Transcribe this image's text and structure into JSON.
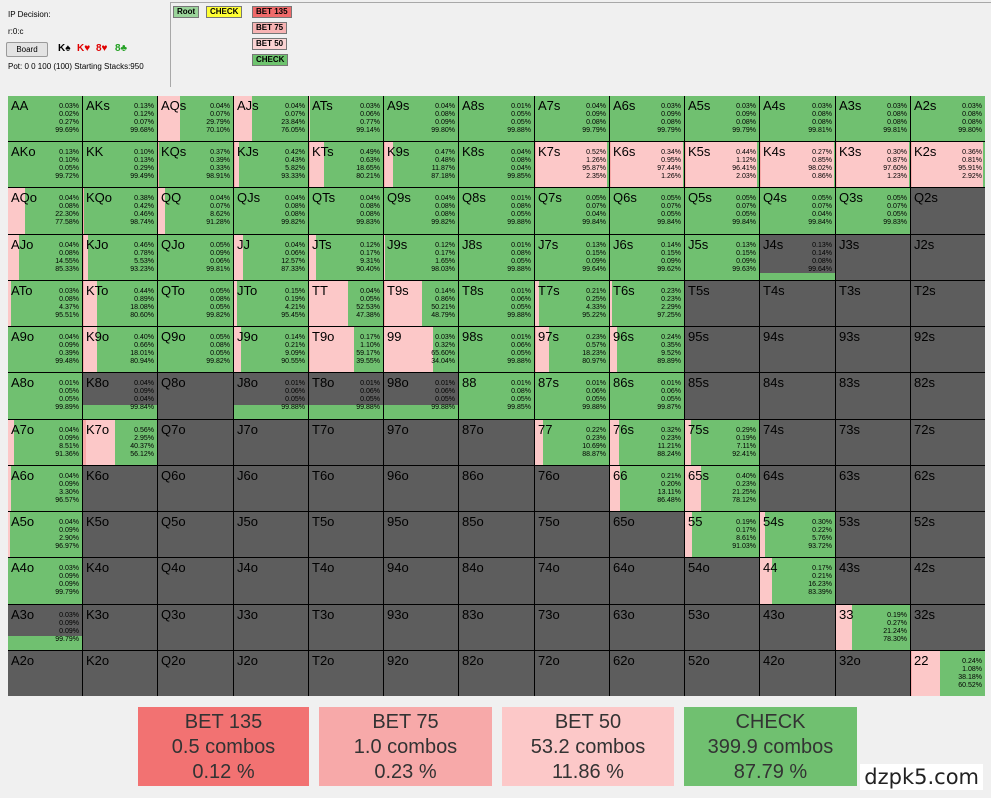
{
  "header": {
    "decision": "IP Decision:",
    "path": "r:0:c",
    "board_button": "Board",
    "cards": [
      {
        "label": "K♠",
        "color": "#000000"
      },
      {
        "label": "K♥",
        "color": "#e00000"
      },
      {
        "label": "8♥",
        "color": "#e00000"
      },
      {
        "label": "8♣",
        "color": "#22a022"
      }
    ],
    "pot_text": "Pot: 0 0 100 (100) Starting Stacks:950"
  },
  "tree": [
    {
      "label": "Root",
      "bg": "#9ad49a"
    },
    {
      "label": "CHECK",
      "bg": "#ffff33"
    },
    {
      "label": "BET 135",
      "bg": "#f06a6a"
    },
    {
      "label": "BET 75",
      "bg": "#f7b3b3"
    },
    {
      "label": "BET 50",
      "bg": "#fbd3d3"
    },
    {
      "label": "CHECK",
      "bg": "#6ec46e"
    }
  ],
  "colors": {
    "bet135": "#f27272",
    "bet75": "#f7a9a9",
    "bet50": "#fcc8c8",
    "check": "#70c070",
    "empty": "#5d5d5d"
  },
  "hands": [
    {
      "hand": "AA",
      "pcts": [
        "0.03%",
        "0.02%",
        "0.27%",
        "99.69%"
      ]
    },
    {
      "hand": "AKs",
      "pcts": [
        "0.13%",
        "0.12%",
        "0.07%",
        "99.68%"
      ]
    },
    {
      "hand": "AQs",
      "pcts": [
        "0.04%",
        "0.07%",
        "29.79%",
        "70.10%"
      ]
    },
    {
      "hand": "AJs",
      "pcts": [
        "0.04%",
        "0.07%",
        "23.84%",
        "76.05%"
      ]
    },
    {
      "hand": "ATs",
      "pcts": [
        "0.03%",
        "0.06%",
        "0.77%",
        "99.14%"
      ]
    },
    {
      "hand": "A9s",
      "pcts": [
        "0.04%",
        "0.08%",
        "0.09%",
        "99.80%"
      ]
    },
    {
      "hand": "A8s",
      "pcts": [
        "0.01%",
        "0.05%",
        "0.05%",
        "99.88%"
      ]
    },
    {
      "hand": "A7s",
      "pcts": [
        "0.04%",
        "0.09%",
        "0.08%",
        "99.79%"
      ]
    },
    {
      "hand": "A6s",
      "pcts": [
        "0.03%",
        "0.09%",
        "0.08%",
        "99.79%"
      ]
    },
    {
      "hand": "A5s",
      "pcts": [
        "0.03%",
        "0.09%",
        "0.08%",
        "99.79%"
      ]
    },
    {
      "hand": "A4s",
      "pcts": [
        "0.03%",
        "0.08%",
        "0.08%",
        "99.81%"
      ]
    },
    {
      "hand": "A3s",
      "pcts": [
        "0.03%",
        "0.08%",
        "0.08%",
        "99.81%"
      ]
    },
    {
      "hand": "A2s",
      "pcts": [
        "0.03%",
        "0.08%",
        "0.08%",
        "99.80%"
      ]
    },
    {
      "hand": "AKo",
      "pcts": [
        "0.13%",
        "0.10%",
        "0.05%",
        "99.72%"
      ]
    },
    {
      "hand": "KK",
      "pcts": [
        "0.10%",
        "0.13%",
        "0.29%",
        "99.49%"
      ]
    },
    {
      "hand": "KQs",
      "pcts": [
        "0.37%",
        "0.39%",
        "0.33%",
        "98.91%"
      ]
    },
    {
      "hand": "KJs",
      "pcts": [
        "0.42%",
        "0.43%",
        "5.82%",
        "93.33%"
      ]
    },
    {
      "hand": "KTs",
      "pcts": [
        "0.49%",
        "0.63%",
        "18.65%",
        "80.21%"
      ]
    },
    {
      "hand": "K9s",
      "pcts": [
        "0.47%",
        "0.48%",
        "11.87%",
        "87.18%"
      ]
    },
    {
      "hand": "K8s",
      "pcts": [
        "0.04%",
        "0.08%",
        "0.04%",
        "99.85%"
      ]
    },
    {
      "hand": "K7s",
      "pcts": [
        "0.52%",
        "1.26%",
        "95.87%",
        "2.35%"
      ]
    },
    {
      "hand": "K6s",
      "pcts": [
        "0.34%",
        "0.95%",
        "97.44%",
        "1.26%"
      ]
    },
    {
      "hand": "K5s",
      "pcts": [
        "0.44%",
        "1.12%",
        "96.41%",
        "2.03%"
      ]
    },
    {
      "hand": "K4s",
      "pcts": [
        "0.27%",
        "0.85%",
        "98.02%",
        "0.86%"
      ]
    },
    {
      "hand": "K3s",
      "pcts": [
        "0.30%",
        "0.87%",
        "97.60%",
        "1.23%"
      ]
    },
    {
      "hand": "K2s",
      "pcts": [
        "0.36%",
        "0.81%",
        "95.91%",
        "2.92%"
      ]
    },
    {
      "hand": "AQo",
      "pcts": [
        "0.04%",
        "0.08%",
        "22.30%",
        "77.58%"
      ]
    },
    {
      "hand": "KQo",
      "pcts": [
        "0.38%",
        "0.42%",
        "0.46%",
        "98.74%"
      ]
    },
    {
      "hand": "QQ",
      "pcts": [
        "0.04%",
        "0.07%",
        "8.62%",
        "91.28%"
      ]
    },
    {
      "hand": "QJs",
      "pcts": [
        "0.04%",
        "0.08%",
        "0.08%",
        "99.82%"
      ]
    },
    {
      "hand": "QTs",
      "pcts": [
        "0.04%",
        "0.08%",
        "0.08%",
        "99.83%"
      ]
    },
    {
      "hand": "Q9s",
      "pcts": [
        "0.04%",
        "0.08%",
        "0.08%",
        "99.82%"
      ]
    },
    {
      "hand": "Q8s",
      "pcts": [
        "0.01%",
        "0.08%",
        "0.05%",
        "99.88%"
      ]
    },
    {
      "hand": "Q7s",
      "pcts": [
        "0.05%",
        "0.07%",
        "0.04%",
        "99.84%"
      ]
    },
    {
      "hand": "Q6s",
      "pcts": [
        "0.05%",
        "0.07%",
        "0.05%",
        "99.84%"
      ]
    },
    {
      "hand": "Q5s",
      "pcts": [
        "0.05%",
        "0.07%",
        "0.05%",
        "99.84%"
      ]
    },
    {
      "hand": "Q4s",
      "pcts": [
        "0.05%",
        "0.07%",
        "0.04%",
        "99.84%"
      ]
    },
    {
      "hand": "Q3s",
      "pcts": [
        "0.05%",
        "0.07%",
        "0.05%",
        "99.83%"
      ]
    },
    {
      "hand": "Q2s",
      "pcts": []
    },
    {
      "hand": "AJo",
      "pcts": [
        "0.04%",
        "0.08%",
        "14.55%",
        "85.33%"
      ]
    },
    {
      "hand": "KJo",
      "pcts": [
        "0.46%",
        "0.78%",
        "5.53%",
        "93.23%"
      ]
    },
    {
      "hand": "QJo",
      "pcts": [
        "0.05%",
        "0.09%",
        "0.06%",
        "99.81%"
      ]
    },
    {
      "hand": "JJ",
      "pcts": [
        "0.04%",
        "0.06%",
        "12.57%",
        "87.33%"
      ]
    },
    {
      "hand": "JTs",
      "pcts": [
        "0.12%",
        "0.17%",
        "9.31%",
        "90.40%"
      ]
    },
    {
      "hand": "J9s",
      "pcts": [
        "0.12%",
        "0.17%",
        "1.65%",
        "98.03%"
      ]
    },
    {
      "hand": "J8s",
      "pcts": [
        "0.01%",
        "0.08%",
        "0.05%",
        "99.88%"
      ]
    },
    {
      "hand": "J7s",
      "pcts": [
        "0.13%",
        "0.15%",
        "0.09%",
        "99.64%"
      ]
    },
    {
      "hand": "J6s",
      "pcts": [
        "0.14%",
        "0.15%",
        "0.09%",
        "99.62%"
      ]
    },
    {
      "hand": "J5s",
      "pcts": [
        "0.13%",
        "0.15%",
        "0.09%",
        "99.63%"
      ]
    },
    {
      "hand": "J4s",
      "pcts": [
        "0.13%",
        "0.14%",
        "0.08%",
        "99.64%"
      ]
    },
    {
      "hand": "J3s",
      "pcts": []
    },
    {
      "hand": "J2s",
      "pcts": []
    },
    {
      "hand": "ATo",
      "pcts": [
        "0.03%",
        "0.08%",
        "4.37%",
        "95.51%"
      ]
    },
    {
      "hand": "KTo",
      "pcts": [
        "0.44%",
        "0.89%",
        "18.08%",
        "80.60%"
      ]
    },
    {
      "hand": "QTo",
      "pcts": [
        "0.05%",
        "0.08%",
        "0.05%",
        "99.82%"
      ]
    },
    {
      "hand": "JTo",
      "pcts": [
        "0.15%",
        "0.19%",
        "4.21%",
        "95.45%"
      ]
    },
    {
      "hand": "TT",
      "pcts": [
        "0.04%",
        "0.05%",
        "52.53%",
        "47.38%"
      ]
    },
    {
      "hand": "T9s",
      "pcts": [
        "0.14%",
        "0.86%",
        "50.21%",
        "48.79%"
      ]
    },
    {
      "hand": "T8s",
      "pcts": [
        "0.01%",
        "0.06%",
        "0.05%",
        "99.88%"
      ]
    },
    {
      "hand": "T7s",
      "pcts": [
        "0.21%",
        "0.25%",
        "4.33%",
        "95.22%"
      ]
    },
    {
      "hand": "T6s",
      "pcts": [
        "0.23%",
        "0.23%",
        "2.29%",
        "97.25%"
      ]
    },
    {
      "hand": "T5s",
      "pcts": []
    },
    {
      "hand": "T4s",
      "pcts": []
    },
    {
      "hand": "T3s",
      "pcts": []
    },
    {
      "hand": "T2s",
      "pcts": []
    },
    {
      "hand": "A9o",
      "pcts": [
        "0.04%",
        "0.09%",
        "0.39%",
        "99.48%"
      ]
    },
    {
      "hand": "K9o",
      "pcts": [
        "0.40%",
        "0.66%",
        "18.01%",
        "80.94%"
      ]
    },
    {
      "hand": "Q9o",
      "pcts": [
        "0.05%",
        "0.08%",
        "0.05%",
        "99.82%"
      ]
    },
    {
      "hand": "J9o",
      "pcts": [
        "0.14%",
        "0.21%",
        "9.09%",
        "90.55%"
      ]
    },
    {
      "hand": "T9o",
      "pcts": [
        "0.17%",
        "1.10%",
        "59.17%",
        "39.55%"
      ]
    },
    {
      "hand": "99",
      "pcts": [
        "0.03%",
        "0.32%",
        "65.60%",
        "34.04%"
      ]
    },
    {
      "hand": "98s",
      "pcts": [
        "0.01%",
        "0.06%",
        "0.05%",
        "99.88%"
      ]
    },
    {
      "hand": "97s",
      "pcts": [
        "0.23%",
        "0.57%",
        "18.23%",
        "80.97%"
      ]
    },
    {
      "hand": "96s",
      "pcts": [
        "0.24%",
        "0.35%",
        "9.52%",
        "89.89%"
      ]
    },
    {
      "hand": "95s",
      "pcts": []
    },
    {
      "hand": "94s",
      "pcts": []
    },
    {
      "hand": "93s",
      "pcts": []
    },
    {
      "hand": "92s",
      "pcts": []
    },
    {
      "hand": "A8o",
      "pcts": [
        "0.01%",
        "0.05%",
        "0.05%",
        "99.89%"
      ]
    },
    {
      "hand": "K8o",
      "pcts": [
        "0.04%",
        "0.09%",
        "0.04%",
        "99.84%"
      ]
    },
    {
      "hand": "Q8o",
      "pcts": []
    },
    {
      "hand": "J8o",
      "pcts": [
        "0.01%",
        "0.06%",
        "0.05%",
        "99.88%"
      ]
    },
    {
      "hand": "T8o",
      "pcts": [
        "0.01%",
        "0.06%",
        "0.05%",
        "99.88%"
      ]
    },
    {
      "hand": "98o",
      "pcts": [
        "0.01%",
        "0.06%",
        "0.05%",
        "99.88%"
      ]
    },
    {
      "hand": "88",
      "pcts": [
        "0.01%",
        "0.08%",
        "0.05%",
        "99.85%"
      ]
    },
    {
      "hand": "87s",
      "pcts": [
        "0.01%",
        "0.06%",
        "0.05%",
        "99.88%"
      ]
    },
    {
      "hand": "86s",
      "pcts": [
        "0.01%",
        "0.06%",
        "0.05%",
        "99.87%"
      ]
    },
    {
      "hand": "85s",
      "pcts": []
    },
    {
      "hand": "84s",
      "pcts": []
    },
    {
      "hand": "83s",
      "pcts": []
    },
    {
      "hand": "82s",
      "pcts": []
    },
    {
      "hand": "A7o",
      "pcts": [
        "0.04%",
        "0.09%",
        "8.51%",
        "91.36%"
      ]
    },
    {
      "hand": "K7o",
      "pcts": [
        "0.56%",
        "2.95%",
        "40.37%",
        "56.12%"
      ]
    },
    {
      "hand": "Q7o",
      "pcts": []
    },
    {
      "hand": "J7o",
      "pcts": []
    },
    {
      "hand": "T7o",
      "pcts": []
    },
    {
      "hand": "97o",
      "pcts": []
    },
    {
      "hand": "87o",
      "pcts": []
    },
    {
      "hand": "77",
      "pcts": [
        "0.22%",
        "0.23%",
        "10.69%",
        "88.87%"
      ]
    },
    {
      "hand": "76s",
      "pcts": [
        "0.32%",
        "0.23%",
        "11.21%",
        "88.24%"
      ]
    },
    {
      "hand": "75s",
      "pcts": [
        "0.29%",
        "0.19%",
        "7.11%",
        "92.41%"
      ]
    },
    {
      "hand": "74s",
      "pcts": []
    },
    {
      "hand": "73s",
      "pcts": []
    },
    {
      "hand": "72s",
      "pcts": []
    },
    {
      "hand": "A6o",
      "pcts": [
        "0.04%",
        "0.09%",
        "3.30%",
        "96.57%"
      ]
    },
    {
      "hand": "K6o",
      "pcts": []
    },
    {
      "hand": "Q6o",
      "pcts": []
    },
    {
      "hand": "J6o",
      "pcts": []
    },
    {
      "hand": "T6o",
      "pcts": []
    },
    {
      "hand": "96o",
      "pcts": []
    },
    {
      "hand": "86o",
      "pcts": []
    },
    {
      "hand": "76o",
      "pcts": []
    },
    {
      "hand": "66",
      "pcts": [
        "0.21%",
        "0.20%",
        "13.11%",
        "86.48%"
      ]
    },
    {
      "hand": "65s",
      "pcts": [
        "0.40%",
        "0.23%",
        "21.25%",
        "78.12%"
      ]
    },
    {
      "hand": "64s",
      "pcts": []
    },
    {
      "hand": "63s",
      "pcts": []
    },
    {
      "hand": "62s",
      "pcts": []
    },
    {
      "hand": "A5o",
      "pcts": [
        "0.04%",
        "0.09%",
        "2.90%",
        "96.97%"
      ]
    },
    {
      "hand": "K5o",
      "pcts": []
    },
    {
      "hand": "Q5o",
      "pcts": []
    },
    {
      "hand": "J5o",
      "pcts": []
    },
    {
      "hand": "T5o",
      "pcts": []
    },
    {
      "hand": "95o",
      "pcts": []
    },
    {
      "hand": "85o",
      "pcts": []
    },
    {
      "hand": "75o",
      "pcts": []
    },
    {
      "hand": "65o",
      "pcts": []
    },
    {
      "hand": "55",
      "pcts": [
        "0.19%",
        "0.17%",
        "8.61%",
        "91.03%"
      ]
    },
    {
      "hand": "54s",
      "pcts": [
        "0.30%",
        "0.22%",
        "5.76%",
        "93.72%"
      ]
    },
    {
      "hand": "53s",
      "pcts": []
    },
    {
      "hand": "52s",
      "pcts": []
    },
    {
      "hand": "A4o",
      "pcts": [
        "0.03%",
        "0.09%",
        "0.09%",
        "99.79%"
      ]
    },
    {
      "hand": "K4o",
      "pcts": []
    },
    {
      "hand": "Q4o",
      "pcts": []
    },
    {
      "hand": "J4o",
      "pcts": []
    },
    {
      "hand": "T4o",
      "pcts": []
    },
    {
      "hand": "94o",
      "pcts": []
    },
    {
      "hand": "84o",
      "pcts": []
    },
    {
      "hand": "74o",
      "pcts": []
    },
    {
      "hand": "64o",
      "pcts": []
    },
    {
      "hand": "54o",
      "pcts": []
    },
    {
      "hand": "44",
      "pcts": [
        "0.17%",
        "0.21%",
        "16.23%",
        "83.39%"
      ]
    },
    {
      "hand": "43s",
      "pcts": []
    },
    {
      "hand": "42s",
      "pcts": []
    },
    {
      "hand": "A3o",
      "pcts": [
        "0.03%",
        "0.09%",
        "0.09%",
        "99.79%"
      ]
    },
    {
      "hand": "K3o",
      "pcts": []
    },
    {
      "hand": "Q3o",
      "pcts": []
    },
    {
      "hand": "J3o",
      "pcts": []
    },
    {
      "hand": "T3o",
      "pcts": []
    },
    {
      "hand": "93o",
      "pcts": []
    },
    {
      "hand": "83o",
      "pcts": []
    },
    {
      "hand": "73o",
      "pcts": []
    },
    {
      "hand": "63o",
      "pcts": []
    },
    {
      "hand": "53o",
      "pcts": []
    },
    {
      "hand": "43o",
      "pcts": []
    },
    {
      "hand": "33",
      "pcts": [
        "0.19%",
        "0.27%",
        "21.24%",
        "78.30%"
      ]
    },
    {
      "hand": "32s",
      "pcts": []
    },
    {
      "hand": "A2o",
      "pcts": []
    },
    {
      "hand": "K2o",
      "pcts": []
    },
    {
      "hand": "Q2o",
      "pcts": []
    },
    {
      "hand": "J2o",
      "pcts": []
    },
    {
      "hand": "T2o",
      "pcts": []
    },
    {
      "hand": "92o",
      "pcts": []
    },
    {
      "hand": "82o",
      "pcts": []
    },
    {
      "hand": "72o",
      "pcts": []
    },
    {
      "hand": "62o",
      "pcts": []
    },
    {
      "hand": "52o",
      "pcts": []
    },
    {
      "hand": "42o",
      "pcts": []
    },
    {
      "hand": "32o",
      "pcts": []
    },
    {
      "hand": "22",
      "pcts": [
        "0.24%",
        "1.08%",
        "38.18%",
        "60.52%"
      ]
    }
  ],
  "partial_frequency": {
    "J4s": 0.15,
    "K8o": 0.3,
    "J8o": 0.3,
    "T8o": 0.3,
    "98o": 0.3,
    "A3o": 0.3
  },
  "legend": [
    {
      "action": "BET 135",
      "combos": "0.5 combos",
      "pct": "0.12 %",
      "bg": "#f27272"
    },
    {
      "action": "BET 75",
      "combos": "1.0 combos",
      "pct": "0.23 %",
      "bg": "#f7a9a9"
    },
    {
      "action": "BET 50",
      "combos": "53.2 combos",
      "pct": "11.86 %",
      "bg": "#fcc8c8"
    },
    {
      "action": "CHECK",
      "combos": "399.9 combos",
      "pct": "87.79 %",
      "bg": "#70c070"
    }
  ],
  "watermark": "dzpk5.com"
}
